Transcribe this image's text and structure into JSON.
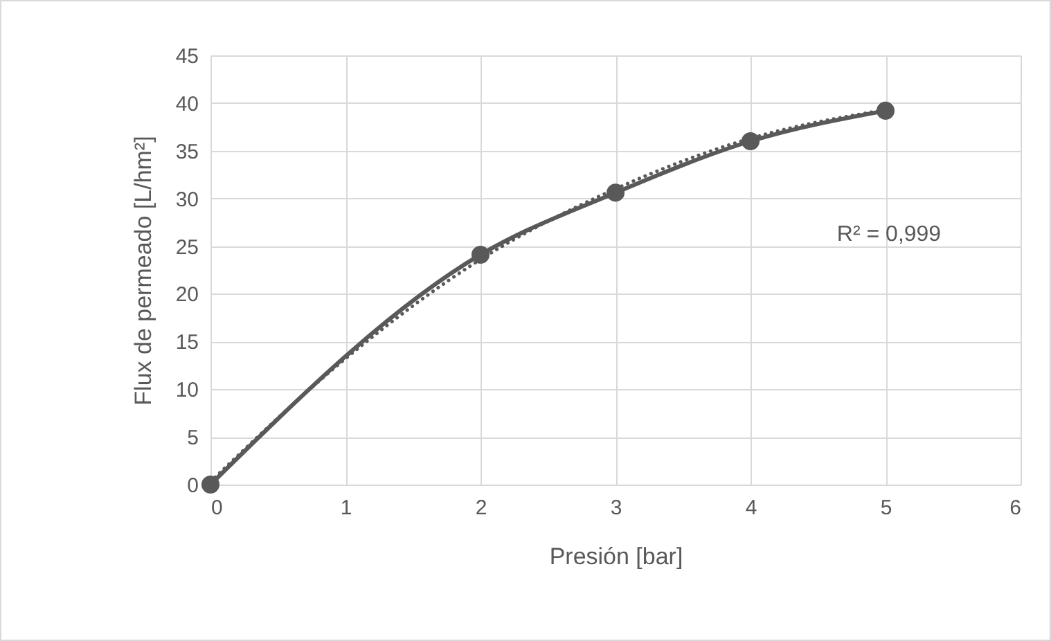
{
  "chart_data": {
    "type": "line",
    "xlabel": "Presión [bar]",
    "ylabel": "Flux de permeado [L/hm²]",
    "xlim": [
      0,
      6
    ],
    "xticks": [
      0,
      1,
      2,
      3,
      4,
      5,
      6
    ],
    "ylim": [
      0,
      45
    ],
    "yticks": [
      0,
      5,
      10,
      15,
      20,
      25,
      30,
      35,
      40,
      45
    ],
    "grid": true,
    "annotations": [
      "R² = 0,999"
    ],
    "series": [
      {
        "color": "#595959",
        "x": [
          0,
          2,
          3,
          4,
          5
        ],
        "values": [
          0,
          24.1,
          30.6,
          36.0,
          39.2
        ],
        "marker": "circle",
        "line_style": "solid"
      },
      {
        "type": "line",
        "color": "#595959",
        "x": [
          0,
          1,
          2,
          3,
          4,
          5
        ],
        "values": [
          0.3,
          13.2,
          23.6,
          31.0,
          36.3,
          39.3
        ],
        "marker": "none",
        "line_style": "dotted"
      }
    ]
  }
}
